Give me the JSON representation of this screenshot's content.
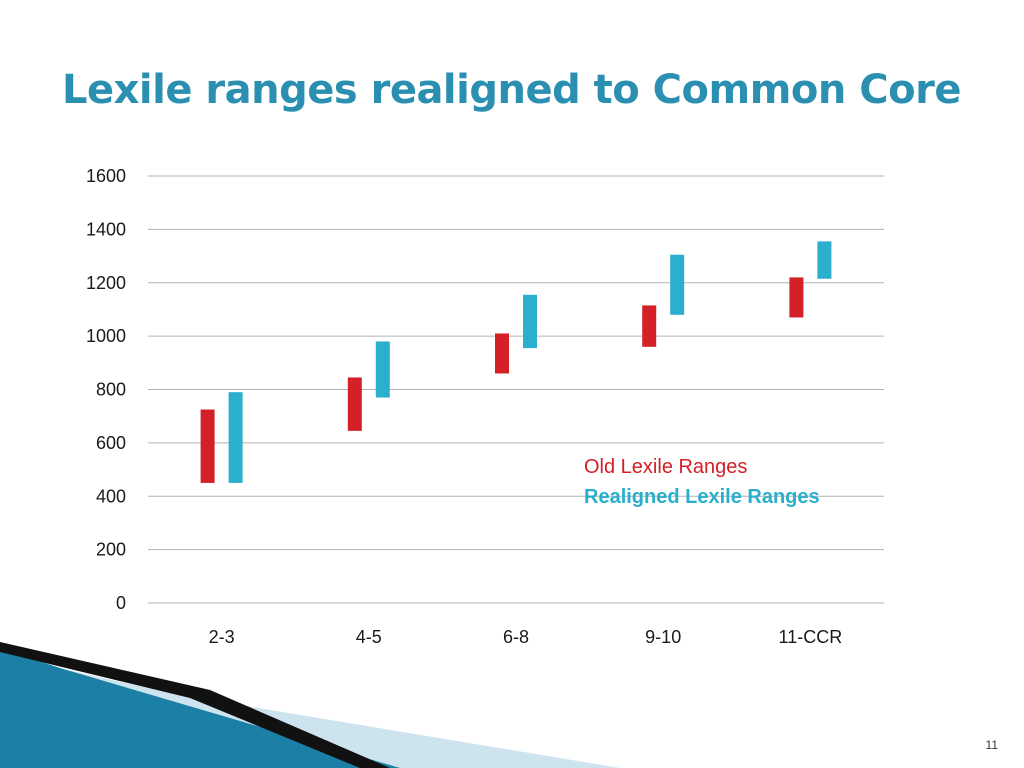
{
  "slide": {
    "title": "Lexile ranges realigned to Common Core",
    "page_number": "11"
  },
  "colors": {
    "title": "#2a8fb0",
    "old_series": "#d42027",
    "new_series": "#2aafcc",
    "gridline": "#b3b3b3",
    "decor_dark": "#111111",
    "decor_blue": "#1b7fa6",
    "decor_light": "#cde3ee"
  },
  "chart_data": {
    "type": "bar",
    "subtype": "floating-range",
    "categories": [
      "2-3",
      "4-5",
      "6-8",
      "9-10",
      "11-CCR"
    ],
    "series": [
      {
        "name": "Old Lexile Ranges",
        "color": "#d42027",
        "ranges": [
          [
            450,
            725
          ],
          [
            645,
            845
          ],
          [
            860,
            1010
          ],
          [
            960,
            1115
          ],
          [
            1070,
            1220
          ]
        ]
      },
      {
        "name": "Realigned Lexile Ranges",
        "color": "#2aafcc",
        "ranges": [
          [
            450,
            790
          ],
          [
            770,
            980
          ],
          [
            955,
            1155
          ],
          [
            1080,
            1305
          ],
          [
            1215,
            1355
          ]
        ]
      }
    ],
    "y_ticks": [
      "0",
      "200",
      "400",
      "600",
      "800",
      "1000",
      "1200",
      "1400",
      "1600"
    ],
    "ylim": [
      0,
      1600
    ],
    "grid": true,
    "legend_position": "right-middle"
  }
}
